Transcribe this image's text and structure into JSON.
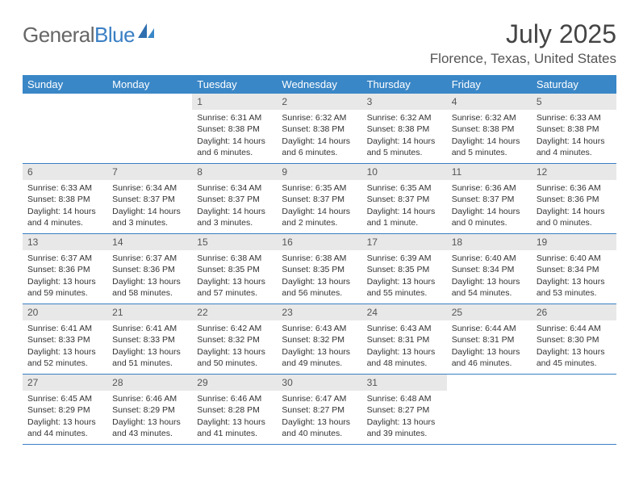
{
  "logo": {
    "part1": "General",
    "part2": "Blue"
  },
  "title": "July 2025",
  "location": "Florence, Texas, United States",
  "colors": {
    "header_bg": "#3a87c7",
    "daynum_bg": "#e8e8e8",
    "rule": "#3a7fc4",
    "text": "#333333",
    "logo_gray": "#666666",
    "logo_blue": "#3a7fc4"
  },
  "weekdays": [
    "Sunday",
    "Monday",
    "Tuesday",
    "Wednesday",
    "Thursday",
    "Friday",
    "Saturday"
  ],
  "weeks": [
    [
      {
        "n": "",
        "sr": "",
        "ss": "",
        "dl": ""
      },
      {
        "n": "",
        "sr": "",
        "ss": "",
        "dl": ""
      },
      {
        "n": "1",
        "sr": "Sunrise: 6:31 AM",
        "ss": "Sunset: 8:38 PM",
        "dl": "Daylight: 14 hours and 6 minutes."
      },
      {
        "n": "2",
        "sr": "Sunrise: 6:32 AM",
        "ss": "Sunset: 8:38 PM",
        "dl": "Daylight: 14 hours and 6 minutes."
      },
      {
        "n": "3",
        "sr": "Sunrise: 6:32 AM",
        "ss": "Sunset: 8:38 PM",
        "dl": "Daylight: 14 hours and 5 minutes."
      },
      {
        "n": "4",
        "sr": "Sunrise: 6:32 AM",
        "ss": "Sunset: 8:38 PM",
        "dl": "Daylight: 14 hours and 5 minutes."
      },
      {
        "n": "5",
        "sr": "Sunrise: 6:33 AM",
        "ss": "Sunset: 8:38 PM",
        "dl": "Daylight: 14 hours and 4 minutes."
      }
    ],
    [
      {
        "n": "6",
        "sr": "Sunrise: 6:33 AM",
        "ss": "Sunset: 8:38 PM",
        "dl": "Daylight: 14 hours and 4 minutes."
      },
      {
        "n": "7",
        "sr": "Sunrise: 6:34 AM",
        "ss": "Sunset: 8:37 PM",
        "dl": "Daylight: 14 hours and 3 minutes."
      },
      {
        "n": "8",
        "sr": "Sunrise: 6:34 AM",
        "ss": "Sunset: 8:37 PM",
        "dl": "Daylight: 14 hours and 3 minutes."
      },
      {
        "n": "9",
        "sr": "Sunrise: 6:35 AM",
        "ss": "Sunset: 8:37 PM",
        "dl": "Daylight: 14 hours and 2 minutes."
      },
      {
        "n": "10",
        "sr": "Sunrise: 6:35 AM",
        "ss": "Sunset: 8:37 PM",
        "dl": "Daylight: 14 hours and 1 minute."
      },
      {
        "n": "11",
        "sr": "Sunrise: 6:36 AM",
        "ss": "Sunset: 8:37 PM",
        "dl": "Daylight: 14 hours and 0 minutes."
      },
      {
        "n": "12",
        "sr": "Sunrise: 6:36 AM",
        "ss": "Sunset: 8:36 PM",
        "dl": "Daylight: 14 hours and 0 minutes."
      }
    ],
    [
      {
        "n": "13",
        "sr": "Sunrise: 6:37 AM",
        "ss": "Sunset: 8:36 PM",
        "dl": "Daylight: 13 hours and 59 minutes."
      },
      {
        "n": "14",
        "sr": "Sunrise: 6:37 AM",
        "ss": "Sunset: 8:36 PM",
        "dl": "Daylight: 13 hours and 58 minutes."
      },
      {
        "n": "15",
        "sr": "Sunrise: 6:38 AM",
        "ss": "Sunset: 8:35 PM",
        "dl": "Daylight: 13 hours and 57 minutes."
      },
      {
        "n": "16",
        "sr": "Sunrise: 6:38 AM",
        "ss": "Sunset: 8:35 PM",
        "dl": "Daylight: 13 hours and 56 minutes."
      },
      {
        "n": "17",
        "sr": "Sunrise: 6:39 AM",
        "ss": "Sunset: 8:35 PM",
        "dl": "Daylight: 13 hours and 55 minutes."
      },
      {
        "n": "18",
        "sr": "Sunrise: 6:40 AM",
        "ss": "Sunset: 8:34 PM",
        "dl": "Daylight: 13 hours and 54 minutes."
      },
      {
        "n": "19",
        "sr": "Sunrise: 6:40 AM",
        "ss": "Sunset: 8:34 PM",
        "dl": "Daylight: 13 hours and 53 minutes."
      }
    ],
    [
      {
        "n": "20",
        "sr": "Sunrise: 6:41 AM",
        "ss": "Sunset: 8:33 PM",
        "dl": "Daylight: 13 hours and 52 minutes."
      },
      {
        "n": "21",
        "sr": "Sunrise: 6:41 AM",
        "ss": "Sunset: 8:33 PM",
        "dl": "Daylight: 13 hours and 51 minutes."
      },
      {
        "n": "22",
        "sr": "Sunrise: 6:42 AM",
        "ss": "Sunset: 8:32 PM",
        "dl": "Daylight: 13 hours and 50 minutes."
      },
      {
        "n": "23",
        "sr": "Sunrise: 6:43 AM",
        "ss": "Sunset: 8:32 PM",
        "dl": "Daylight: 13 hours and 49 minutes."
      },
      {
        "n": "24",
        "sr": "Sunrise: 6:43 AM",
        "ss": "Sunset: 8:31 PM",
        "dl": "Daylight: 13 hours and 48 minutes."
      },
      {
        "n": "25",
        "sr": "Sunrise: 6:44 AM",
        "ss": "Sunset: 8:31 PM",
        "dl": "Daylight: 13 hours and 46 minutes."
      },
      {
        "n": "26",
        "sr": "Sunrise: 6:44 AM",
        "ss": "Sunset: 8:30 PM",
        "dl": "Daylight: 13 hours and 45 minutes."
      }
    ],
    [
      {
        "n": "27",
        "sr": "Sunrise: 6:45 AM",
        "ss": "Sunset: 8:29 PM",
        "dl": "Daylight: 13 hours and 44 minutes."
      },
      {
        "n": "28",
        "sr": "Sunrise: 6:46 AM",
        "ss": "Sunset: 8:29 PM",
        "dl": "Daylight: 13 hours and 43 minutes."
      },
      {
        "n": "29",
        "sr": "Sunrise: 6:46 AM",
        "ss": "Sunset: 8:28 PM",
        "dl": "Daylight: 13 hours and 41 minutes."
      },
      {
        "n": "30",
        "sr": "Sunrise: 6:47 AM",
        "ss": "Sunset: 8:27 PM",
        "dl": "Daylight: 13 hours and 40 minutes."
      },
      {
        "n": "31",
        "sr": "Sunrise: 6:48 AM",
        "ss": "Sunset: 8:27 PM",
        "dl": "Daylight: 13 hours and 39 minutes."
      },
      {
        "n": "",
        "sr": "",
        "ss": "",
        "dl": ""
      },
      {
        "n": "",
        "sr": "",
        "ss": "",
        "dl": ""
      }
    ]
  ]
}
